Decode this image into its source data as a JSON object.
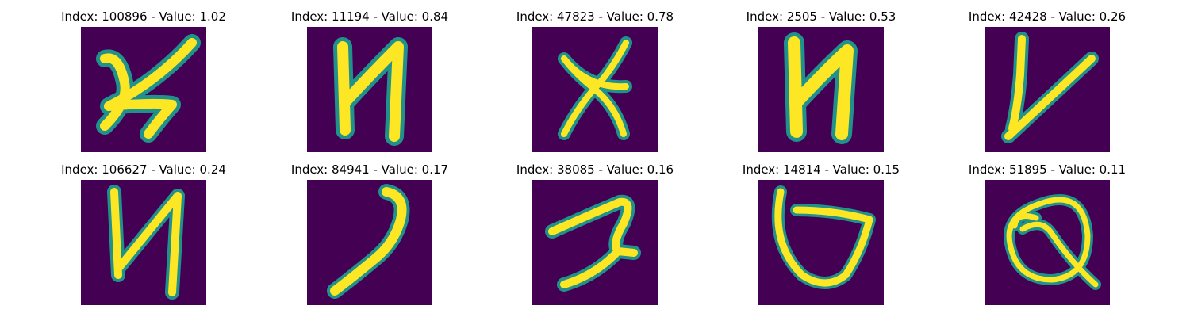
{
  "colors": {
    "background": "#440154",
    "halo": "#21918c",
    "stroke": "#fde725"
  },
  "panels": [
    {
      "title": "Index: 100896 - Value: 1.02"
    },
    {
      "title": "Index: 11194 - Value: 0.84"
    },
    {
      "title": "Index: 47823 - Value: 0.78"
    },
    {
      "title": "Index: 2505 - Value: 0.53"
    },
    {
      "title": "Index: 42428 - Value: 0.26"
    },
    {
      "title": "Index: 106627 - Value: 0.24"
    },
    {
      "title": "Index: 84941 - Value: 0.17"
    },
    {
      "title": "Index: 38085 - Value: 0.16"
    },
    {
      "title": "Index: 14814 - Value: 0.15"
    },
    {
      "title": "Index: 51895 - Value: 0.11"
    }
  ]
}
